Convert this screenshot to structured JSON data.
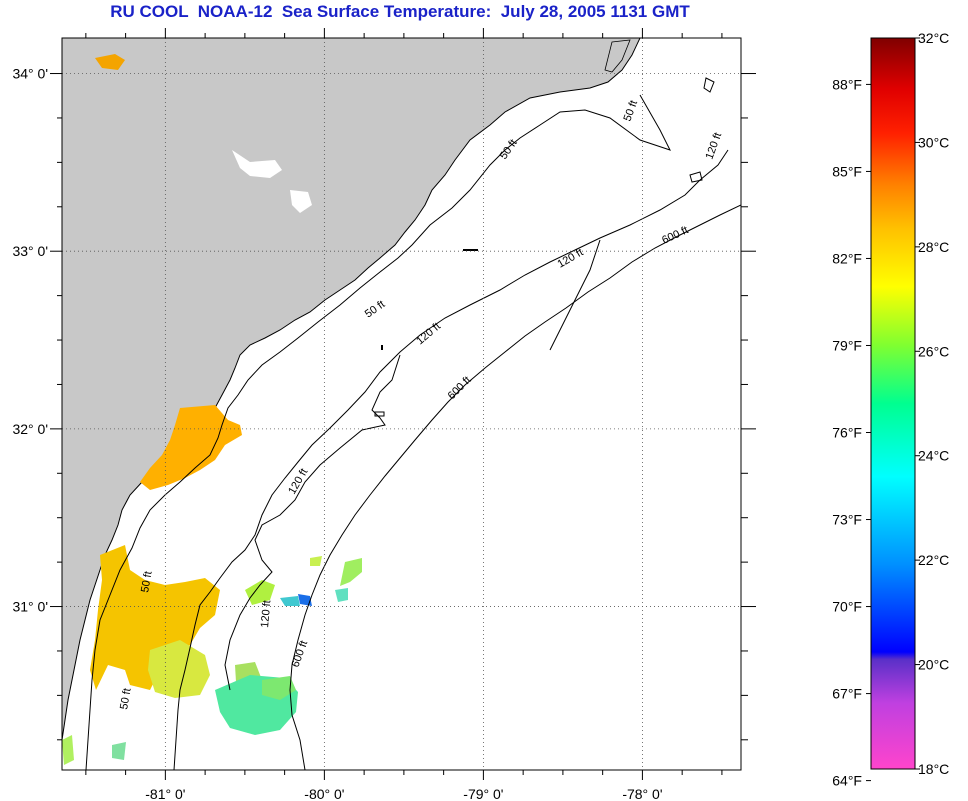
{
  "title": "RU COOL  NOAA-12  Sea Surface Temperature:  July 28, 2005 1131 GMT",
  "map": {
    "lon_range": [
      -81.65,
      -77.38
    ],
    "lat_range": [
      30.08,
      34.2
    ],
    "lon_ticks": [
      {
        "value": -81,
        "label": "-81° 0'"
      },
      {
        "value": -80,
        "label": "-80° 0'"
      },
      {
        "value": -79,
        "label": "-79° 0'"
      },
      {
        "value": -78,
        "label": "-78° 0'"
      }
    ],
    "lat_ticks": [
      {
        "value": 34,
        "label": "34° 0'"
      },
      {
        "value": 33,
        "label": "33° 0'"
      },
      {
        "value": 32,
        "label": "32° 0'"
      },
      {
        "value": 31,
        "label": "31° 0'"
      }
    ],
    "land_color": "#c8c8c8",
    "grid": true,
    "contour_labels": [
      {
        "label": "50 ft"
      },
      {
        "label": "50 ft"
      },
      {
        "label": "50 ft"
      },
      {
        "label": "50 ft"
      },
      {
        "label": "50 ft"
      },
      {
        "label": "120 ft"
      },
      {
        "label": "120 ft"
      },
      {
        "label": "120 ft"
      },
      {
        "label": "120 ft"
      },
      {
        "label": "120 ft"
      },
      {
        "label": "600 ft"
      },
      {
        "label": "600 ft"
      },
      {
        "label": "600 ft"
      }
    ]
  },
  "colorbar": {
    "celsius_labels": [
      "32°C",
      "30°C",
      "28°C",
      "26°C",
      "24°C",
      "22°C",
      "20°C",
      "18°C"
    ],
    "fahrenheit_labels": [
      "88°F",
      "85°F",
      "82°F",
      "79°F",
      "76°F",
      "73°F",
      "70°F",
      "67°F",
      "64°F"
    ],
    "range_c": [
      18,
      32
    ],
    "stops": [
      "#ff00ff",
      "#c040e0",
      "#8040d0",
      "#0000ff",
      "#00a0ff",
      "#00ffff",
      "#00ff80",
      "#80ff00",
      "#ffff00",
      "#ffc000",
      "#ff8000",
      "#ff4000",
      "#ff0000",
      "#c00000",
      "#800000"
    ]
  }
}
